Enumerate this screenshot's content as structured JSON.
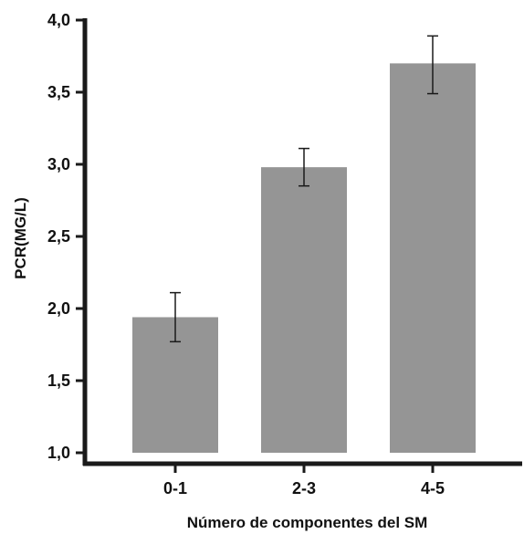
{
  "chart_data": {
    "type": "bar",
    "categories": [
      "0-1",
      "2-3",
      "4-5"
    ],
    "values": [
      1.94,
      2.98,
      3.7
    ],
    "error_low": [
      1.77,
      2.85,
      3.49
    ],
    "error_high": [
      2.11,
      3.11,
      3.89
    ],
    "baseline": 1.0,
    "ylim": [
      1.0,
      4.0
    ],
    "yticks": [
      1.0,
      1.5,
      2.0,
      2.5,
      3.0,
      3.5,
      4.0
    ],
    "ytick_labels": [
      "1,0",
      "1,5",
      "2,0",
      "2,5",
      "3,0",
      "3,5",
      "4,0"
    ],
    "xlabel": "Número de componentes del SM",
    "ylabel": "PCR(MG/L)",
    "grid": false,
    "legend": "none",
    "colors": {
      "bar": "#959595",
      "axis": "#1a1a1a",
      "error": "#1a1a1a"
    }
  }
}
